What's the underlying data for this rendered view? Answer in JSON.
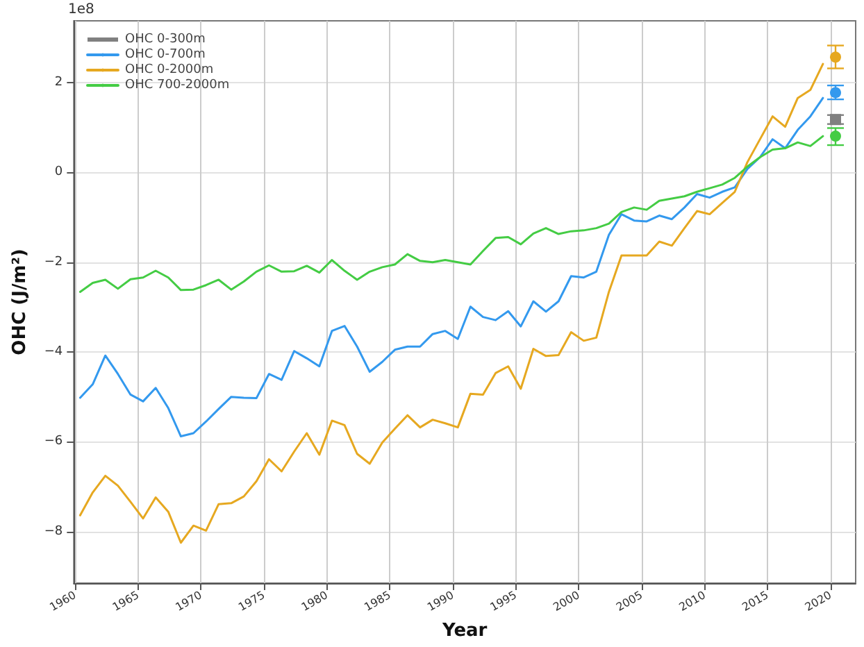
{
  "chart_data": {
    "type": "line",
    "xlabel": "Year",
    "ylabel": "OHC (J/m²)",
    "annotations": [
      "1e8"
    ],
    "x": [
      1960.4,
      1961.4,
      1962.4,
      1963.4,
      1964.4,
      1965.4,
      1966.4,
      1967.4,
      1968.4,
      1969.4,
      1970.4,
      1971.4,
      1972.4,
      1973.4,
      1974.4,
      1975.4,
      1976.4,
      1977.4,
      1978.4,
      1979.4,
      1980.4,
      1981.4,
      1982.4,
      1983.4,
      1984.4,
      1985.4,
      1986.4,
      1987.4,
      1988.4,
      1989.4,
      1990.4,
      1991.4,
      1992.4,
      1993.4,
      1994.4,
      1995.4,
      1996.4,
      1997.4,
      1998.4,
      1999.4,
      2000.4,
      2001.4,
      2002.4,
      2003.4,
      2004.4,
      2005.4,
      2006.4,
      2007.4,
      2008.4,
      2009.4,
      2010.4,
      2011.4,
      2012.4,
      2013.4,
      2014.4,
      2015.4,
      2016.4,
      2017.4,
      2018.4,
      2019.4,
      2020.4
    ],
    "xlim": [
      1959.9,
      2022
    ],
    "xticks": [
      1960,
      1965,
      1970,
      1975,
      1980,
      1985,
      1990,
      1995,
      2000,
      2005,
      2010,
      2015,
      2020
    ],
    "ylim": [
      -9.15,
      3.38
    ],
    "yticks": [
      -8,
      -6,
      -4,
      -2,
      0,
      2
    ],
    "grid": true,
    "legend": "top left",
    "marker": "none",
    "line_style": "solid",
    "series": [
      {
        "name": "OHC 0-300m",
        "type": "scatter",
        "marker": "square",
        "color": "#808080",
        "values": [
          null,
          null,
          null,
          null,
          null,
          null,
          null,
          null,
          null,
          null,
          null,
          null,
          null,
          null,
          null,
          null,
          null,
          null,
          null,
          null,
          null,
          null,
          null,
          null,
          null,
          null,
          null,
          null,
          null,
          null,
          null,
          null,
          null,
          null,
          null,
          null,
          null,
          null,
          null,
          null,
          null,
          null,
          null,
          null,
          null,
          null,
          null,
          null,
          null,
          null,
          null,
          null,
          null,
          null,
          null,
          null,
          null,
          null,
          null,
          null,
          1.18
        ],
        "errors": [
          null,
          null,
          null,
          null,
          null,
          null,
          null,
          null,
          null,
          null,
          null,
          null,
          null,
          null,
          null,
          null,
          null,
          null,
          null,
          null,
          null,
          null,
          null,
          null,
          null,
          null,
          null,
          null,
          null,
          null,
          null,
          null,
          null,
          null,
          null,
          null,
          null,
          null,
          null,
          null,
          null,
          null,
          null,
          null,
          null,
          null,
          null,
          null,
          null,
          null,
          null,
          null,
          null,
          null,
          null,
          null,
          null,
          null,
          null,
          null,
          [
            1.08,
            1.28
          ]
        ]
      },
      {
        "name": "OHC 0-700m",
        "color": "#3399ee",
        "values": [
          -5.02,
          -4.72,
          -4.08,
          -4.49,
          -4.95,
          -5.1,
          -4.8,
          -5.25,
          -5.88,
          -5.81,
          -5.55,
          -5.27,
          -5.0,
          -5.02,
          -5.03,
          -4.49,
          -4.62,
          -3.98,
          -4.14,
          -4.32,
          -3.53,
          -3.42,
          -3.88,
          -4.44,
          -4.22,
          -3.95,
          -3.88,
          -3.88,
          -3.6,
          -3.53,
          -3.71,
          -2.99,
          -3.22,
          -3.29,
          -3.09,
          -3.43,
          -2.87,
          -3.1,
          -2.87,
          -2.31,
          -2.34,
          -2.21,
          -1.39,
          -0.93,
          -1.07,
          -1.09,
          -0.96,
          -1.04,
          -0.78,
          -0.48,
          -0.56,
          -0.43,
          -0.33,
          0.08,
          0.34,
          0.74,
          0.54,
          0.95,
          1.25,
          1.66,
          null
        ]
      },
      {
        "name": "OHC 0-2000m",
        "color": "#e6a820",
        "values": [
          -7.64,
          -7.13,
          -6.76,
          -6.98,
          -7.34,
          -7.71,
          -7.24,
          -7.56,
          -8.25,
          -7.87,
          -7.98,
          -7.39,
          -7.37,
          -7.22,
          -6.88,
          -6.39,
          -6.66,
          -6.22,
          -5.81,
          -6.29,
          -5.53,
          -5.63,
          -6.27,
          -6.49,
          -6.02,
          -5.71,
          -5.41,
          -5.68,
          -5.51,
          -5.59,
          -5.68,
          -4.93,
          -4.95,
          -4.47,
          -4.32,
          -4.82,
          -3.93,
          -4.09,
          -4.07,
          -3.56,
          -3.75,
          -3.68,
          -2.66,
          -1.85,
          -1.85,
          -1.85,
          -1.54,
          -1.63,
          -1.24,
          -0.86,
          -0.93,
          -0.68,
          -0.43,
          0.23,
          0.74,
          1.25,
          1.02,
          1.66,
          1.84,
          2.42,
          null
        ]
      },
      {
        "name": "OHC 700-2000m",
        "color": "#44cc44",
        "values": [
          -2.66,
          -2.46,
          -2.39,
          -2.59,
          -2.38,
          -2.34,
          -2.19,
          -2.34,
          -2.62,
          -2.61,
          -2.51,
          -2.39,
          -2.61,
          -2.43,
          -2.21,
          -2.07,
          -2.21,
          -2.2,
          -2.08,
          -2.23,
          -1.95,
          -2.19,
          -2.39,
          -2.21,
          -2.11,
          -2.05,
          -1.82,
          -1.97,
          -2.0,
          -1.95,
          -2.0,
          -2.05,
          -1.75,
          -1.46,
          -1.44,
          -1.6,
          -1.36,
          -1.24,
          -1.37,
          -1.31,
          -1.29,
          -1.24,
          -1.14,
          -0.88,
          -0.78,
          -0.83,
          -0.63,
          -0.58,
          -0.53,
          -0.43,
          -0.35,
          -0.27,
          -0.12,
          0.13,
          0.34,
          0.51,
          0.54,
          0.67,
          0.59,
          0.81,
          null
        ]
      },
      {
        "type": "scatter",
        "marker": "circle",
        "color": "#3399ee",
        "values": [
          null,
          null,
          null,
          null,
          null,
          null,
          null,
          null,
          null,
          null,
          null,
          null,
          null,
          null,
          null,
          null,
          null,
          null,
          null,
          null,
          null,
          null,
          null,
          null,
          null,
          null,
          null,
          null,
          null,
          null,
          null,
          null,
          null,
          null,
          null,
          null,
          null,
          null,
          null,
          null,
          null,
          null,
          null,
          null,
          null,
          null,
          null,
          null,
          null,
          null,
          null,
          null,
          null,
          null,
          null,
          null,
          null,
          null,
          null,
          null,
          1.78
        ],
        "errors": [
          null,
          null,
          null,
          null,
          null,
          null,
          null,
          null,
          null,
          null,
          null,
          null,
          null,
          null,
          null,
          null,
          null,
          null,
          null,
          null,
          null,
          null,
          null,
          null,
          null,
          null,
          null,
          null,
          null,
          null,
          null,
          null,
          null,
          null,
          null,
          null,
          null,
          null,
          null,
          null,
          null,
          null,
          null,
          null,
          null,
          null,
          null,
          null,
          null,
          null,
          null,
          null,
          null,
          null,
          null,
          null,
          null,
          null,
          null,
          null,
          [
            1.63,
            1.94
          ]
        ]
      },
      {
        "type": "scatter",
        "marker": "circle",
        "color": "#e6a820",
        "values": [
          null,
          null,
          null,
          null,
          null,
          null,
          null,
          null,
          null,
          null,
          null,
          null,
          null,
          null,
          null,
          null,
          null,
          null,
          null,
          null,
          null,
          null,
          null,
          null,
          null,
          null,
          null,
          null,
          null,
          null,
          null,
          null,
          null,
          null,
          null,
          null,
          null,
          null,
          null,
          null,
          null,
          null,
          null,
          null,
          null,
          null,
          null,
          null,
          null,
          null,
          null,
          null,
          null,
          null,
          null,
          null,
          null,
          null,
          null,
          null,
          2.57
        ],
        "errors": [
          null,
          null,
          null,
          null,
          null,
          null,
          null,
          null,
          null,
          null,
          null,
          null,
          null,
          null,
          null,
          null,
          null,
          null,
          null,
          null,
          null,
          null,
          null,
          null,
          null,
          null,
          null,
          null,
          null,
          null,
          null,
          null,
          null,
          null,
          null,
          null,
          null,
          null,
          null,
          null,
          null,
          null,
          null,
          null,
          null,
          null,
          null,
          null,
          null,
          null,
          null,
          null,
          null,
          null,
          null,
          null,
          null,
          null,
          null,
          null,
          [
            2.32,
            2.83
          ]
        ]
      },
      {
        "type": "scatter",
        "marker": "circle",
        "color": "#44cc44",
        "values": [
          null,
          null,
          null,
          null,
          null,
          null,
          null,
          null,
          null,
          null,
          null,
          null,
          null,
          null,
          null,
          null,
          null,
          null,
          null,
          null,
          null,
          null,
          null,
          null,
          null,
          null,
          null,
          null,
          null,
          null,
          null,
          null,
          null,
          null,
          null,
          null,
          null,
          null,
          null,
          null,
          null,
          null,
          null,
          null,
          null,
          null,
          null,
          null,
          null,
          null,
          null,
          null,
          null,
          null,
          null,
          null,
          null,
          null,
          null,
          null,
          0.81
        ],
        "errors": [
          null,
          null,
          null,
          null,
          null,
          null,
          null,
          null,
          null,
          null,
          null,
          null,
          null,
          null,
          null,
          null,
          null,
          null,
          null,
          null,
          null,
          null,
          null,
          null,
          null,
          null,
          null,
          null,
          null,
          null,
          null,
          null,
          null,
          null,
          null,
          null,
          null,
          null,
          null,
          null,
          null,
          null,
          null,
          null,
          null,
          null,
          null,
          null,
          null,
          null,
          null,
          null,
          null,
          null,
          null,
          null,
          null,
          null,
          null,
          null,
          [
            0.61,
            0.99
          ]
        ]
      }
    ]
  }
}
